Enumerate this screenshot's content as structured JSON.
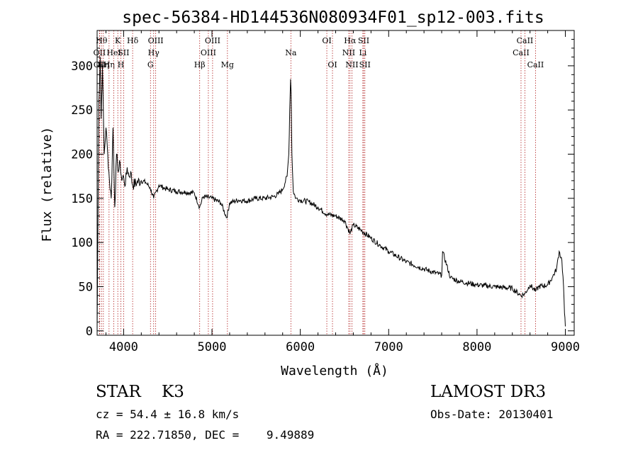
{
  "chart_data": {
    "type": "line",
    "title": "spec-56384-HD144536N080934F01_sp12-003.fits",
    "xlabel": "Wavelength (Å)",
    "ylabel": "Flux (relative)",
    "xlim": [
      3700,
      9100
    ],
    "ylim": [
      -5,
      340
    ],
    "xticks": [
      4000,
      5000,
      6000,
      7000,
      8000,
      9000
    ],
    "yticks": [
      0,
      50,
      100,
      150,
      200,
      250,
      300
    ],
    "grid": false,
    "series": [
      {
        "x": [
          3700,
          3720,
          3735,
          3745,
          3760,
          3780,
          3800,
          3820,
          3840,
          3860,
          3880,
          3900,
          3920,
          3940,
          3960,
          3980,
          4000,
          4020,
          4040,
          4060,
          4080,
          4100,
          4150,
          4200,
          4250,
          4300,
          4340,
          4400,
          4450,
          4500,
          4600,
          4700,
          4800,
          4861,
          4900,
          5000,
          5100,
          5167,
          5200,
          5300,
          5400,
          5500,
          5600,
          5700,
          5750,
          5800,
          5850,
          5870,
          5880,
          5890,
          5896,
          5905,
          5920,
          5950,
          6000,
          6100,
          6200,
          6300,
          6400,
          6500,
          6563,
          6600,
          6700,
          6800,
          6900,
          7000,
          7200,
          7400,
          7600,
          7610,
          7700,
          7800,
          8000,
          8200,
          8400,
          8498,
          8542,
          8600,
          8662,
          8700,
          8800,
          8850,
          8900,
          8930,
          8960,
          8980,
          8990,
          9000
        ],
        "y": [
          0,
          260,
          310,
          240,
          300,
          200,
          230,
          200,
          170,
          150,
          230,
          140,
          200,
          180,
          190,
          170,
          175,
          165,
          185,
          175,
          180,
          165,
          168,
          170,
          168,
          162,
          150,
          165,
          162,
          160,
          158,
          157,
          156,
          140,
          152,
          150,
          145,
          128,
          145,
          148,
          147,
          150,
          150,
          152,
          155,
          160,
          175,
          200,
          250,
          285,
          270,
          200,
          158,
          150,
          148,
          146,
          140,
          132,
          130,
          125,
          110,
          120,
          113,
          105,
          97,
          90,
          78,
          70,
          63,
          90,
          60,
          56,
          52,
          50,
          48,
          40,
          42,
          52,
          45,
          50,
          52,
          60,
          70,
          90,
          80,
          50,
          20,
          5
        ]
      }
    ],
    "lines": [
      {
        "wl": 3727,
        "label": "OII",
        "row": 1
      },
      {
        "wl": 3730,
        "label": "OII",
        "row": 2
      },
      {
        "wl": 3750,
        "label": "Hθ",
        "row": 0
      },
      {
        "wl": 3771,
        "label": "Hη",
        "row": 2
      },
      {
        "wl": 3835,
        "label": "Hη",
        "row": 2
      },
      {
        "wl": 3889,
        "label": "HeI",
        "row": 1
      },
      {
        "wl": 3934,
        "label": "K",
        "row": 0
      },
      {
        "wl": 3969,
        "label": "H",
        "row": 2
      },
      {
        "wl": 4000,
        "label": "SII",
        "row": 1
      },
      {
        "wl": 4102,
        "label": "Hδ",
        "row": 0
      },
      {
        "wl": 4304,
        "label": "G",
        "row": 2
      },
      {
        "wl": 4340,
        "label": "Hγ",
        "row": 1
      },
      {
        "wl": 4363,
        "label": "OIII",
        "row": 0
      },
      {
        "wl": 4861,
        "label": "Hβ",
        "row": 2
      },
      {
        "wl": 4959,
        "label": "OIII",
        "row": 1
      },
      {
        "wl": 5007,
        "label": "OIII",
        "row": 0
      },
      {
        "wl": 5175,
        "label": "Mg",
        "row": 2
      },
      {
        "wl": 5893,
        "label": "Na",
        "row": 1
      },
      {
        "wl": 6300,
        "label": "OI",
        "row": 0
      },
      {
        "wl": 6364,
        "label": "OI",
        "row": 2
      },
      {
        "wl": 6548,
        "label": "NII",
        "row": 1
      },
      {
        "wl": 6563,
        "label": "Hα",
        "row": 0
      },
      {
        "wl": 6584,
        "label": "NII",
        "row": 2
      },
      {
        "wl": 6708,
        "label": "Li",
        "row": 1
      },
      {
        "wl": 6717,
        "label": "SII",
        "row": 0
      },
      {
        "wl": 6731,
        "label": "SII",
        "row": 2
      },
      {
        "wl": 8498,
        "label": "CaII",
        "row": 1
      },
      {
        "wl": 8542,
        "label": "CaII",
        "row": 0
      },
      {
        "wl": 8662,
        "label": "CaII",
        "row": 2
      }
    ]
  },
  "info": {
    "star_line": "STAR    K3",
    "survey": "LAMOST DR3",
    "redshift": "cz = 54.4 ± 16.8 km/s",
    "obs_date": "Obs-Date: 20130401",
    "coords": "RA = 222.71850, DEC =    9.49889"
  }
}
